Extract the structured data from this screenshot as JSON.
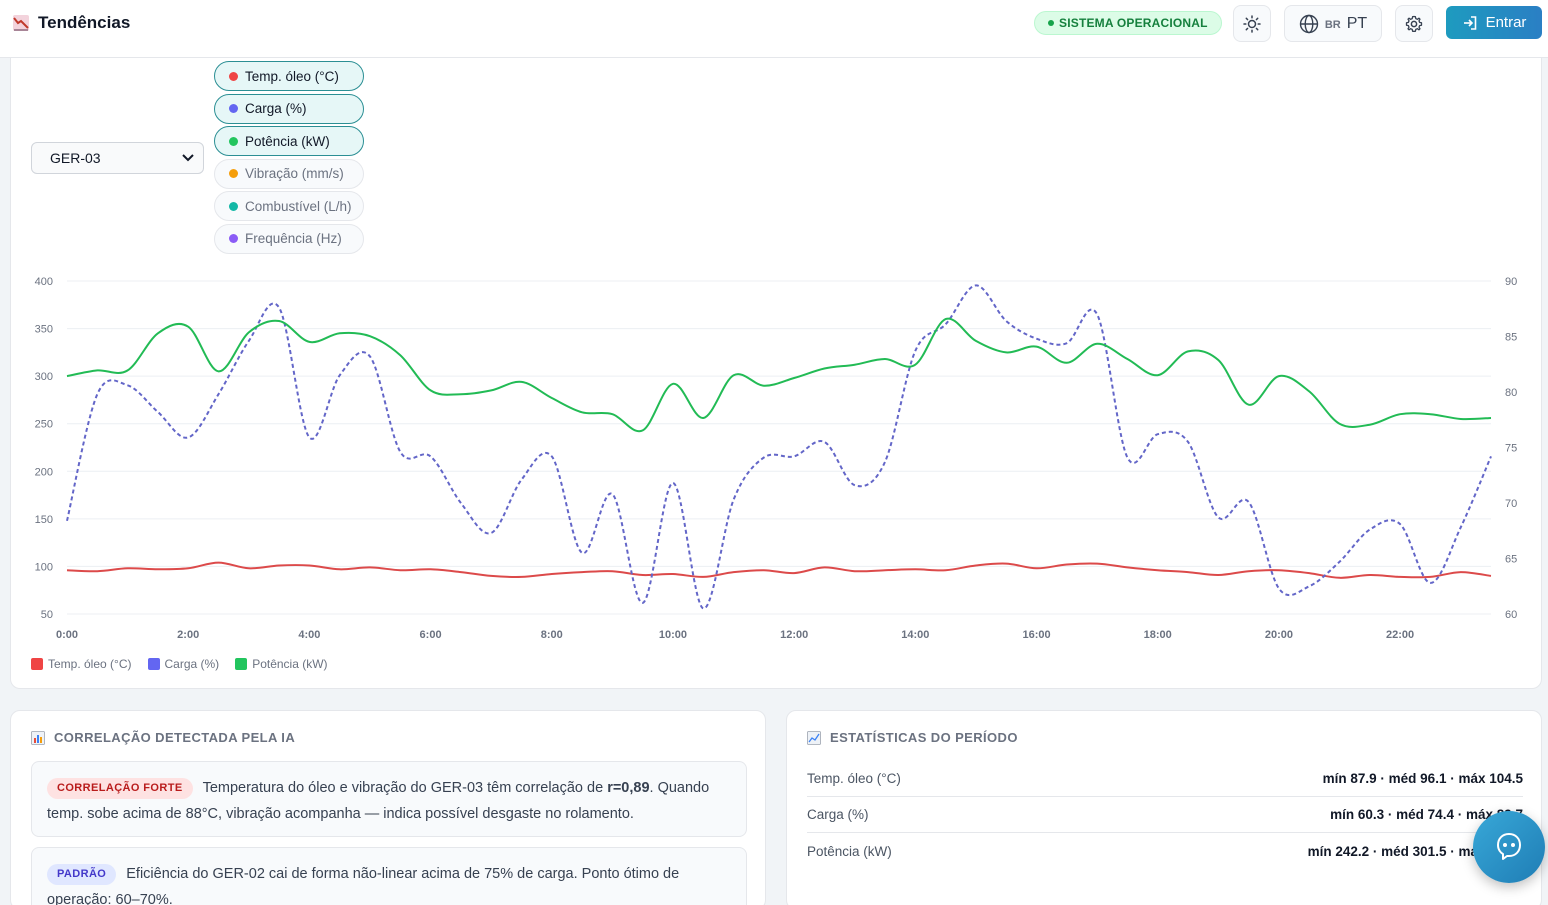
{
  "header": {
    "title": "Tendências",
    "status": "SISTEMA OPERACIONAL",
    "lang_flag": "BR",
    "lang_code": "PT",
    "login_label": "Entrar"
  },
  "controls": {
    "generator_selected": "GER-03",
    "metrics": [
      {
        "label": "Temp. óleo (°C)",
        "color": "#ef4444",
        "active": true
      },
      {
        "label": "Carga (%)",
        "color": "#6366f1",
        "active": true
      },
      {
        "label": "Potência (kW)",
        "color": "#22c55e",
        "active": true
      },
      {
        "label": "Vibração (mm/s)",
        "color": "#f59e0b",
        "active": false
      },
      {
        "label": "Combustível (L/h)",
        "color": "#14b8a6",
        "active": false
      },
      {
        "label": "Frequência (Hz)",
        "color": "#8b5cf6",
        "active": false
      }
    ]
  },
  "chart_data": {
    "type": "line",
    "x_ticks": [
      "0:00",
      "2:00",
      "4:00",
      "6:00",
      "8:00",
      "10:00",
      "12:00",
      "14:00",
      "16:00",
      "18:00",
      "20:00",
      "22:00"
    ],
    "y_left_ticks": [
      "400",
      "350",
      "300",
      "250",
      "200",
      "150",
      "100",
      "50"
    ],
    "y_right_ticks": [
      "90",
      "85",
      "80",
      "75",
      "70",
      "65",
      "60"
    ],
    "y_left_range": [
      50,
      400
    ],
    "y_right_range": [
      60,
      90
    ],
    "x_range_hours": [
      0,
      23.5
    ],
    "grid": true,
    "legend_position": "bottom-left",
    "series": [
      {
        "name": "Temp. óleo (°C)",
        "axis": "left",
        "color": "#dc4a4a",
        "style": "solid",
        "x": [
          0,
          0.5,
          1,
          1.5,
          2,
          2.5,
          3,
          3.5,
          4,
          4.5,
          5,
          5.5,
          6,
          6.5,
          7,
          7.5,
          8,
          8.5,
          9,
          9.5,
          10,
          10.5,
          11,
          11.5,
          12,
          12.5,
          13,
          13.5,
          14,
          14.5,
          15,
          15.5,
          16,
          16.5,
          17,
          17.5,
          18,
          18.5,
          19,
          19.5,
          20,
          20.5,
          21,
          21.5,
          22,
          22.5,
          23,
          23.5
        ],
        "values": [
          96,
          95,
          98,
          97,
          98,
          104,
          98,
          101,
          101,
          97,
          99,
          96,
          97,
          94,
          90,
          89,
          92,
          94,
          95,
          91,
          92,
          89,
          94,
          96,
          93,
          99,
          95,
          96,
          97,
          96,
          101,
          103,
          98,
          102,
          103,
          99,
          96,
          94,
          91,
          95,
          96,
          93,
          88,
          91,
          89,
          89,
          94,
          90
        ]
      },
      {
        "name": "Carga (%)",
        "axis": "right",
        "color": "#6366c8",
        "style": "dashed",
        "x": [
          0,
          0.5,
          1,
          1.5,
          2,
          2.5,
          3,
          3.5,
          4,
          4.5,
          5,
          5.5,
          6,
          6.5,
          7,
          7.5,
          8,
          8.5,
          9,
          9.5,
          10,
          10.5,
          11,
          11.5,
          12,
          12.5,
          13,
          13.5,
          14,
          14.5,
          15,
          15.5,
          16,
          16.5,
          17,
          17.5,
          18,
          18.5,
          19,
          19.5,
          20,
          20.5,
          21,
          21.5,
          22,
          22.5,
          23,
          23.5
        ],
        "values": [
          68.4,
          79.8,
          80.6,
          78.2,
          75.9,
          79.8,
          84.6,
          87.6,
          75.9,
          81.5,
          83.2,
          74.6,
          74.2,
          70,
          67.3,
          72.1,
          74.2,
          65.5,
          70.8,
          61,
          71.8,
          60.5,
          70.3,
          74.1,
          74.2,
          75.5,
          71.6,
          73.7,
          83.7,
          86.1,
          89.6,
          86.4,
          84.8,
          84.4,
          87,
          74.1,
          76.2,
          75.5,
          68.7,
          70.1,
          62.3,
          62.5,
          64.7,
          67.6,
          68.1,
          62.8,
          67.8,
          74.2
        ]
      },
      {
        "name": "Potência (kW)",
        "axis": "left",
        "color": "#22bb55",
        "style": "solid",
        "x": [
          0,
          0.5,
          1,
          1.5,
          2,
          2.5,
          3,
          3.5,
          4,
          4.5,
          5,
          5.5,
          6,
          6.5,
          7,
          7.5,
          8,
          8.5,
          9,
          9.5,
          10,
          10.5,
          11,
          11.5,
          12,
          12.5,
          13,
          13.5,
          14,
          14.5,
          15,
          15.5,
          16,
          16.5,
          17,
          17.5,
          18,
          18.5,
          19,
          19.5,
          20,
          20.5,
          21,
          21.5,
          22,
          22.5,
          23,
          23.5
        ],
        "values": [
          300,
          306,
          306,
          345,
          352,
          305,
          346,
          358,
          336,
          345,
          342,
          322,
          285,
          281,
          285,
          294,
          277,
          262,
          260,
          243,
          292,
          256,
          301,
          290,
          298,
          308,
          312,
          318,
          312,
          360,
          337,
          325,
          331,
          314,
          334,
          318,
          301,
          326,
          317,
          270,
          300,
          284,
          250,
          249,
          260,
          260,
          255,
          256
        ]
      }
    ]
  },
  "correlation": {
    "title": "CORRELAÇÃO DETECTADA PELA IA",
    "insights": [
      {
        "badge": "CORRELAÇÃO FORTE",
        "text_before": "Temperatura do óleo e vibração do GER-03 têm correlação de ",
        "highlight": "r=0,89",
        "text_after": ". Quando temp. sobe acima de 88°C, vibração acompanha — indica possível desgaste no rolamento."
      },
      {
        "badge": "PADRÃO",
        "text": "Eficiência do GER-02 cai de forma não-linear acima de 75% de carga. Ponto ótimo de operação: 60–70%."
      }
    ]
  },
  "stats": {
    "title": "ESTATÍSTICAS DO PERÍODO",
    "rows": [
      {
        "label": "Temp. óleo (°C)",
        "value": "mín 87.9 · méd 96.1 · máx 104.5"
      },
      {
        "label": "Carga (%)",
        "value": "mín 60.3 · méd 74.4 · máx 89.7"
      },
      {
        "label": "Potência (kW)",
        "value": "mín 242.2 · méd 301.5 · máx 363.5"
      }
    ]
  },
  "colors": {
    "accent": "#1e9bbf",
    "status_green": "#15803d"
  }
}
